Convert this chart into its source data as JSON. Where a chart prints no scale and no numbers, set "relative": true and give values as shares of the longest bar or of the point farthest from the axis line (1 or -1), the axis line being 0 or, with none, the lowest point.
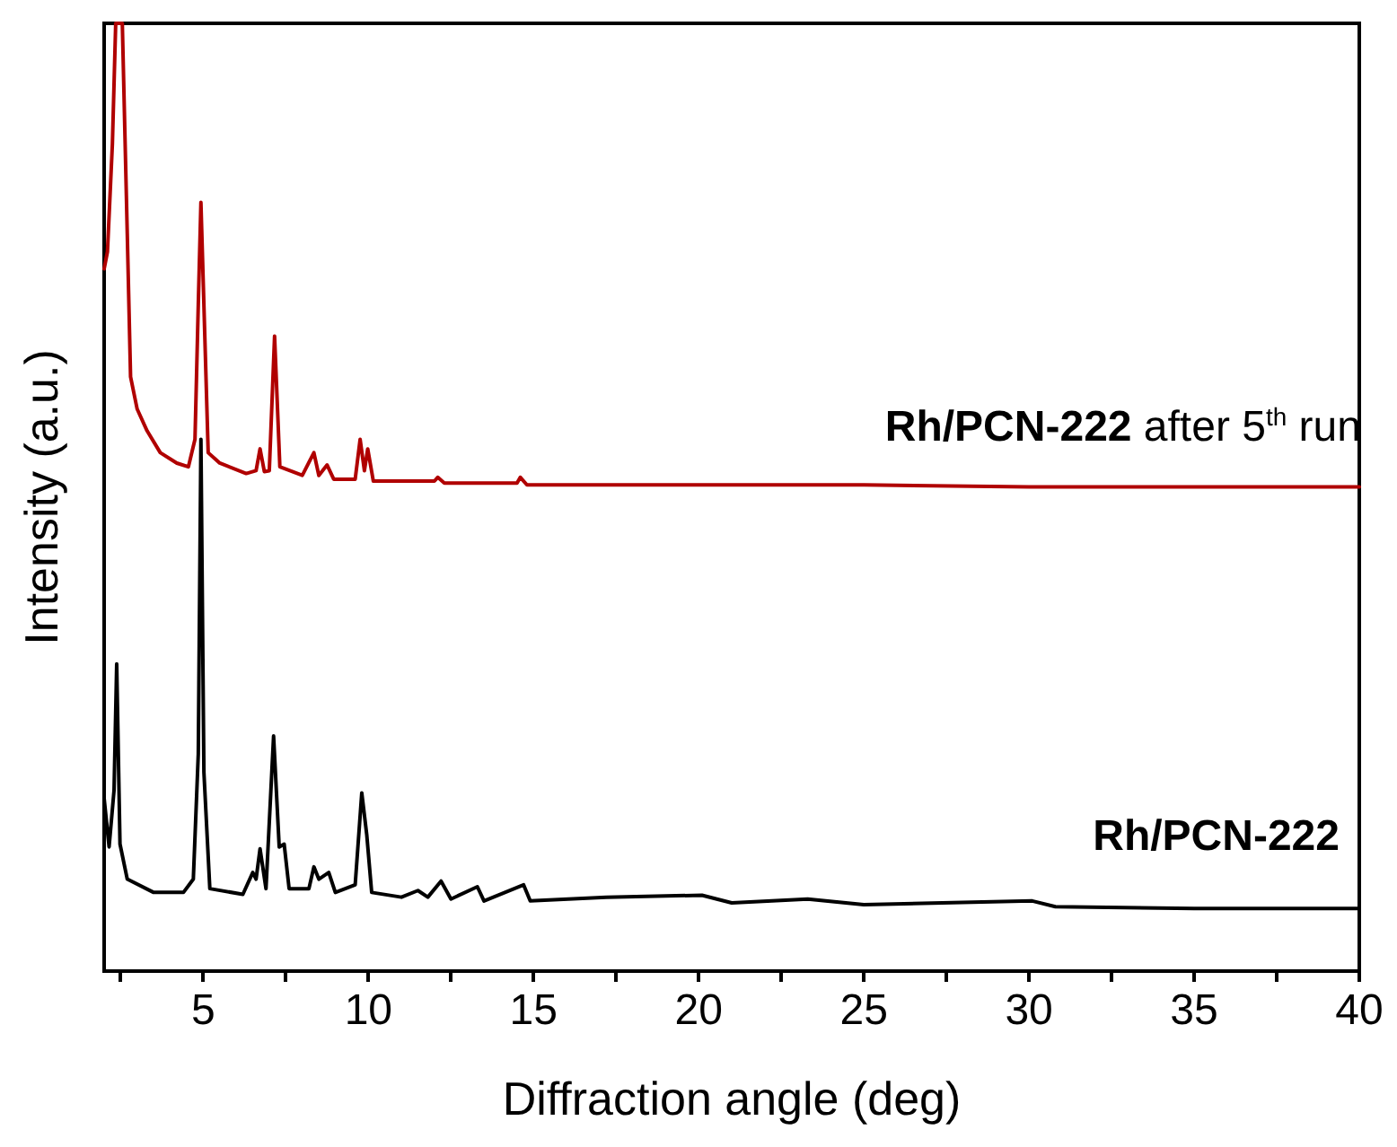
{
  "chart_data": {
    "type": "line",
    "relative": true,
    "xlabel": "Diffraction angle (deg)",
    "ylabel": "Intensity (a.u.)",
    "xlim": [
      2,
      40
    ],
    "xticks": [
      {
        "value": 2.5,
        "label": null
      },
      5,
      {
        "value": 7.5,
        "label": null
      },
      10,
      {
        "value": 12.5,
        "label": null
      },
      15,
      {
        "value": 17.5,
        "label": null
      },
      20,
      {
        "value": 22.5,
        "label": null
      },
      25,
      {
        "value": 27.5,
        "label": null
      },
      30,
      {
        "value": 32.5,
        "label": null
      },
      35,
      {
        "value": 37.5,
        "label": null
      },
      40
    ],
    "marker": "none",
    "line_style": "solid",
    "series": [
      {
        "name": "Rh/PCN-222 after 5$^{th}$ run",
        "color": "#b00000",
        "x": [
          2.0,
          2.1,
          2.25,
          2.35,
          2.55,
          2.7,
          2.8,
          3.0,
          3.3,
          3.7,
          4.2,
          4.55,
          4.75,
          4.85,
          4.93,
          5.02,
          5.15,
          5.5,
          6.3,
          6.6,
          6.72,
          6.85,
          7.0,
          7.16,
          7.32,
          8.0,
          8.35,
          8.5,
          8.75,
          8.95,
          9.6,
          9.75,
          9.88,
          9.98,
          10.15,
          12.0,
          12.1,
          12.3,
          14.5,
          14.6,
          14.8,
          20,
          25,
          30,
          40
        ],
        "values": [
          0.741,
          0.759,
          0.873,
          1,
          1,
          0.778,
          0.627,
          0.593,
          0.57,
          0.547,
          0.536,
          0.532,
          0.561,
          0.703,
          0.811,
          0.703,
          0.547,
          0.536,
          0.525,
          0.528,
          0.551,
          0.527,
          0.528,
          0.67,
          0.532,
          0.523,
          0.547,
          0.523,
          0.534,
          0.519,
          0.519,
          0.561,
          0.528,
          0.551,
          0.517,
          0.517,
          0.521,
          0.515,
          0.515,
          0.521,
          0.513,
          0.513,
          0.513,
          0.511,
          0.511
        ]
      },
      {
        "name": "Rh/PCN-222",
        "color": "#000000",
        "x": [
          2.0,
          2.15,
          2.3,
          2.38,
          2.48,
          2.7,
          3.5,
          4.4,
          4.7,
          4.85,
          4.93,
          5.02,
          5.2,
          6.2,
          6.5,
          6.6,
          6.72,
          6.9,
          7.13,
          7.3,
          7.45,
          7.6,
          8.2,
          8.35,
          8.5,
          8.8,
          9.0,
          9.6,
          9.8,
          9.95,
          10.1,
          11.0,
          11.5,
          11.8,
          12.2,
          12.5,
          13.3,
          13.5,
          14.7,
          14.9,
          17.2,
          20.1,
          21,
          23.3,
          25,
          30.1,
          30.8,
          35,
          40
        ],
        "values": [
          0.182,
          0.131,
          0.191,
          0.324,
          0.134,
          0.097,
          0.083,
          0.083,
          0.097,
          0.229,
          0.561,
          0.21,
          0.087,
          0.081,
          0.104,
          0.097,
          0.129,
          0.087,
          0.248,
          0.131,
          0.134,
          0.087,
          0.087,
          0.11,
          0.097,
          0.104,
          0.083,
          0.091,
          0.188,
          0.144,
          0.083,
          0.078,
          0.085,
          0.078,
          0.095,
          0.076,
          0.089,
          0.074,
          0.091,
          0.074,
          0.078,
          0.08,
          0.072,
          0.076,
          0.07,
          0.074,
          0.068,
          0.066,
          0.066
        ]
      }
    ]
  }
}
